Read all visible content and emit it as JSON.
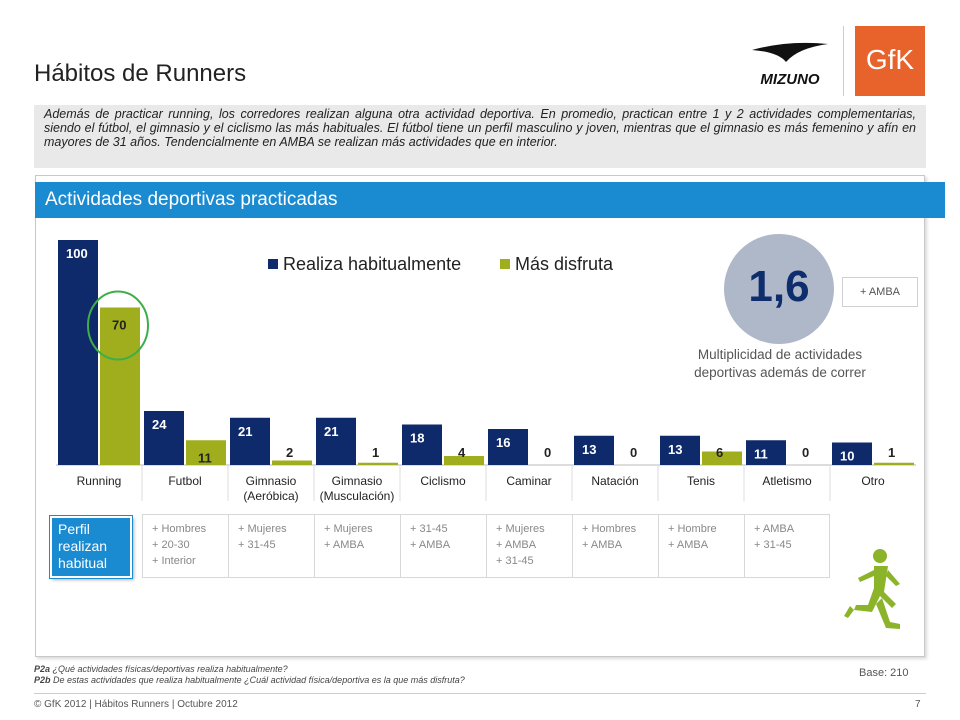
{
  "page": {
    "title": "Hábitos de Runners",
    "intro": "Además de practicar running, los corredores realizan alguna otra actividad deportiva. En promedio, practican entre 1 y 2 actividades complementarias, siendo el fútbol, el gimnasio y el ciclismo  las más habituales. El fútbol tiene un perfil masculino y joven, mientras que el gimnasio es más femenino y afín en mayores de 31 años. Tendencialmente en AMBA se realizan más actividades que en interior.",
    "section_title": "Actividades deportivas practicadas",
    "logo_text": "GfK",
    "brand_logo_text": "MIZUNO"
  },
  "chart_data": {
    "type": "bar",
    "categories": [
      "Running",
      "Futbol",
      "Gimnasio (Aeróbica)",
      "Gimnasio (Musculación)",
      "Ciclismo",
      "Caminar",
      "Natación",
      "Tenis",
      "Atletismo",
      "Otro"
    ],
    "series": [
      {
        "name": "Realiza habitualmente",
        "values": [
          100,
          24,
          21,
          21,
          18,
          16,
          13,
          13,
          11,
          10
        ],
        "color": "#0f2a6b"
      },
      {
        "name": "Más disfruta",
        "values": [
          70,
          11,
          2,
          1,
          4,
          0,
          0,
          6,
          0,
          1
        ],
        "color": "#a0ad1c"
      }
    ],
    "ylim": [
      0,
      100
    ],
    "legend": "top",
    "grid": false,
    "highlight": {
      "category": "Running",
      "series": "Más disfruta",
      "shape": "circle",
      "color": "#3fae49"
    }
  },
  "stat": {
    "value": "1,6",
    "badge": "+ AMBA",
    "description": "Multiplicidad de actividades deportivas además de correr"
  },
  "profile": {
    "title": "Perfil realizan habitual",
    "cells": [
      "+ Hombres\n+ 20-30\n+ Interior",
      "+ Mujeres\n+ 31-45",
      "+ Mujeres\n+ AMBA",
      "+ 31-45\n+ AMBA",
      "+ Mujeres\n+ AMBA\n+ 31-45",
      "+ Hombres\n+ AMBA",
      "+ Hombre\n+ AMBA",
      "+ AMBA\n+ 31-45"
    ]
  },
  "footnotes": {
    "q1_code": "P2a",
    "q1_text": "¿Qué actividades físicas/deportivas realiza habitualmente?",
    "q2_code": "P2b",
    "q2_text": "De estas actividades que realiza habitualmente ¿Cuál actividad física/deportiva es la que más disfruta?",
    "base": "Base: 210",
    "footer": "© GfK 2012 | Hábitos Runners  | Octubre 2012",
    "page_number": "7"
  },
  "colors": {
    "accent_blue": "#1a8ad1",
    "navy": "#0f2a6b",
    "olive": "#a0ad1c",
    "gfk_orange": "#e8622b",
    "runner_green": "#8cb42b"
  }
}
